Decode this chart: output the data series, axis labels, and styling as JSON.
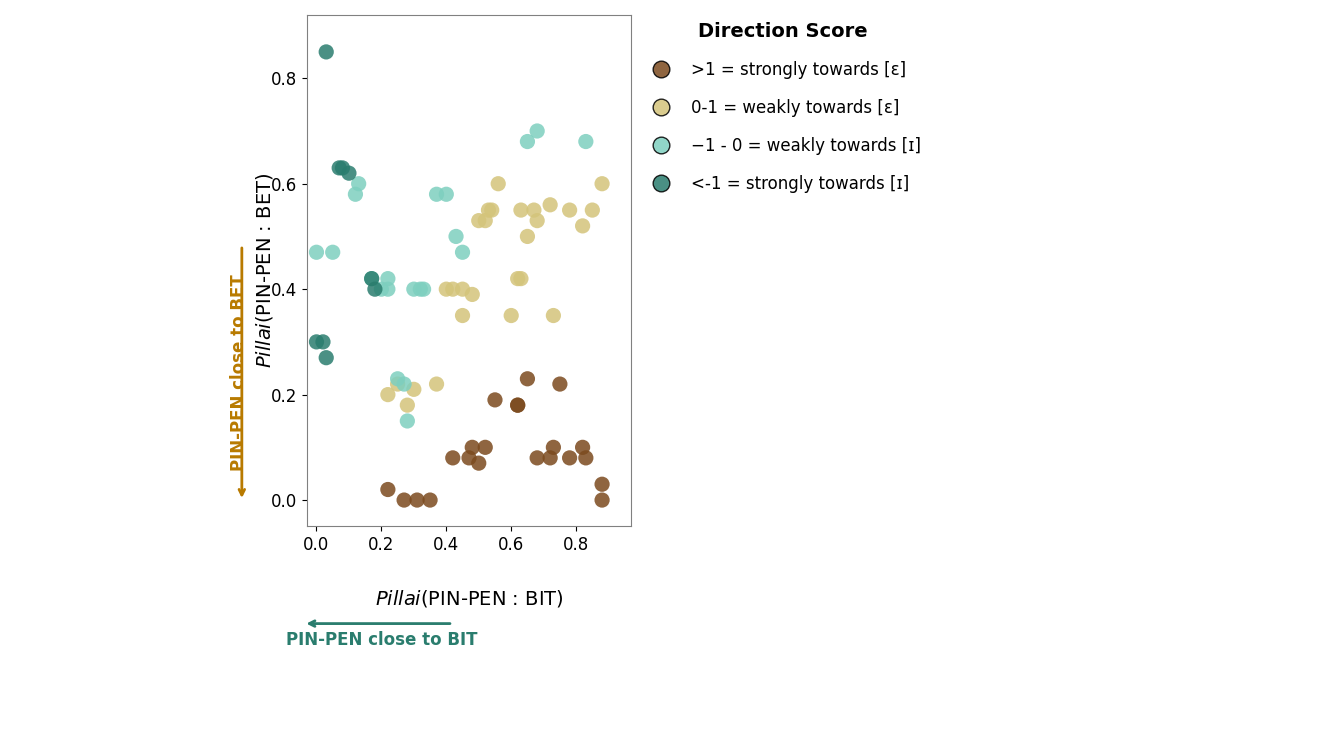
{
  "title": "Direction Score",
  "xlabel_italic": "Pillai",
  "xlabel_rest": "(PIN-PEN : BIT)",
  "ylabel_italic": "Pillai",
  "ylabel_rest": "(PIN-PEN : BET)",
  "arrow_x_label": "PIN-PEN close to BIT",
  "arrow_y_label": "PIN-PEN close to BET",
  "arrow_x_color": "#2a7d6e",
  "arrow_y_color": "#b87a00",
  "xlim": [
    -0.03,
    0.97
  ],
  "ylim": [
    -0.05,
    0.92
  ],
  "xticks": [
    0.0,
    0.2,
    0.4,
    0.6,
    0.8
  ],
  "yticks": [
    0.0,
    0.2,
    0.4,
    0.6,
    0.8
  ],
  "legend_title": "Direction Score",
  "legend_entries": [
    {
      ">1 = strongly towards [ɛ]": "#8B5E3C"
    },
    {
      "0-1 = weakly towards [ɛ]": "#D4C27A"
    },
    {
      "−1 - 0 = weakly towards [ɪ]": "#7ECFBF"
    },
    {
      "<-1 = strongly towards [ɪ]": "#2a7d6e"
    }
  ],
  "colors": {
    "dark_brown": "#7B4A1E",
    "light_tan": "#D4C47A",
    "light_teal": "#7ECFBF",
    "dark_teal": "#2a7d6e"
  },
  "groups": {
    "dark_brown": [
      [
        0.22,
        0.02
      ],
      [
        0.27,
        0.0
      ],
      [
        0.31,
        0.0
      ],
      [
        0.35,
        0.0
      ],
      [
        0.42,
        0.08
      ],
      [
        0.47,
        0.08
      ],
      [
        0.48,
        0.1
      ],
      [
        0.5,
        0.07
      ],
      [
        0.52,
        0.1
      ],
      [
        0.55,
        0.19
      ],
      [
        0.62,
        0.18
      ],
      [
        0.62,
        0.18
      ],
      [
        0.65,
        0.23
      ],
      [
        0.68,
        0.08
      ],
      [
        0.72,
        0.08
      ],
      [
        0.73,
        0.1
      ],
      [
        0.75,
        0.22
      ],
      [
        0.78,
        0.08
      ],
      [
        0.82,
        0.1
      ],
      [
        0.83,
        0.08
      ],
      [
        0.88,
        0.0
      ],
      [
        0.88,
        0.03
      ]
    ],
    "light_tan": [
      [
        0.22,
        0.2
      ],
      [
        0.25,
        0.22
      ],
      [
        0.28,
        0.18
      ],
      [
        0.3,
        0.21
      ],
      [
        0.37,
        0.22
      ],
      [
        0.4,
        0.4
      ],
      [
        0.42,
        0.4
      ],
      [
        0.45,
        0.4
      ],
      [
        0.45,
        0.35
      ],
      [
        0.48,
        0.39
      ],
      [
        0.5,
        0.53
      ],
      [
        0.52,
        0.53
      ],
      [
        0.53,
        0.55
      ],
      [
        0.54,
        0.55
      ],
      [
        0.56,
        0.6
      ],
      [
        0.6,
        0.35
      ],
      [
        0.62,
        0.42
      ],
      [
        0.63,
        0.42
      ],
      [
        0.63,
        0.55
      ],
      [
        0.65,
        0.5
      ],
      [
        0.67,
        0.55
      ],
      [
        0.68,
        0.53
      ],
      [
        0.72,
        0.56
      ],
      [
        0.73,
        0.35
      ],
      [
        0.78,
        0.55
      ],
      [
        0.82,
        0.52
      ],
      [
        0.85,
        0.55
      ],
      [
        0.88,
        0.6
      ]
    ],
    "light_teal": [
      [
        0.0,
        0.47
      ],
      [
        0.05,
        0.47
      ],
      [
        0.12,
        0.58
      ],
      [
        0.13,
        0.6
      ],
      [
        0.17,
        0.42
      ],
      [
        0.2,
        0.4
      ],
      [
        0.22,
        0.4
      ],
      [
        0.22,
        0.42
      ],
      [
        0.25,
        0.23
      ],
      [
        0.27,
        0.22
      ],
      [
        0.28,
        0.15
      ],
      [
        0.3,
        0.4
      ],
      [
        0.32,
        0.4
      ],
      [
        0.33,
        0.4
      ],
      [
        0.37,
        0.58
      ],
      [
        0.4,
        0.58
      ],
      [
        0.43,
        0.5
      ],
      [
        0.45,
        0.47
      ],
      [
        0.65,
        0.68
      ],
      [
        0.68,
        0.7
      ],
      [
        0.83,
        0.68
      ]
    ],
    "dark_teal": [
      [
        0.03,
        0.85
      ],
      [
        0.07,
        0.63
      ],
      [
        0.08,
        0.63
      ],
      [
        0.1,
        0.62
      ],
      [
        0.0,
        0.3
      ],
      [
        0.02,
        0.3
      ],
      [
        0.03,
        0.27
      ],
      [
        0.17,
        0.42
      ],
      [
        0.18,
        0.4
      ]
    ]
  }
}
